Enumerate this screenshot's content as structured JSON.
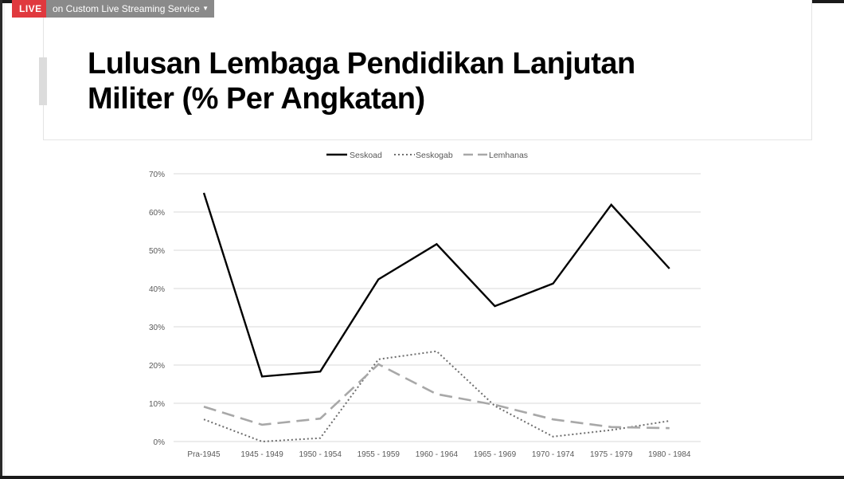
{
  "stream_bar": {
    "live_label": "LIVE",
    "service_label": "on Custom Live Streaming Service"
  },
  "slide": {
    "title_line1": "Lulusan Lembaga Pendidikan Lanjutan",
    "title_line2": "Militer (% Per Angkatan)"
  },
  "colors": {
    "live_red": "#e0393e",
    "seskoad": "#000000",
    "seskogab": "#6d6d6d",
    "lemhanas": "#a8a8a8",
    "grid": "#d9d9d9",
    "axis_text": "#595959"
  },
  "chart_data": {
    "type": "line",
    "categories": [
      "Pra-1945",
      "1945 - 1949",
      "1950 - 1954",
      "1955 - 1959",
      "1960 - 1964",
      "1965 - 1969",
      "1970 - 1974",
      "1975 - 1979",
      "1980 - 1984"
    ],
    "series": [
      {
        "name": "Seskoad",
        "style": "solid",
        "values": [
          65.0,
          17.0,
          18.3,
          42.4,
          51.6,
          35.4,
          41.3,
          61.9,
          45.2
        ]
      },
      {
        "name": "Seskogab",
        "style": "dotted",
        "values": [
          5.8,
          0.0,
          0.9,
          21.5,
          23.6,
          9.3,
          1.3,
          3.0,
          5.4
        ]
      },
      {
        "name": "Lemhanas",
        "style": "dashed",
        "values": [
          9.1,
          4.4,
          6.0,
          20.2,
          12.4,
          9.6,
          5.8,
          3.8,
          3.5
        ]
      }
    ],
    "y_ticks": [
      0,
      10,
      20,
      30,
      40,
      50,
      60,
      70
    ],
    "y_tick_labels": [
      "0%",
      "10%",
      "20%",
      "30%",
      "40%",
      "50%",
      "60%",
      "70%"
    ],
    "ylim": [
      0,
      70
    ],
    "legend_position": "top-center",
    "grid": true
  }
}
